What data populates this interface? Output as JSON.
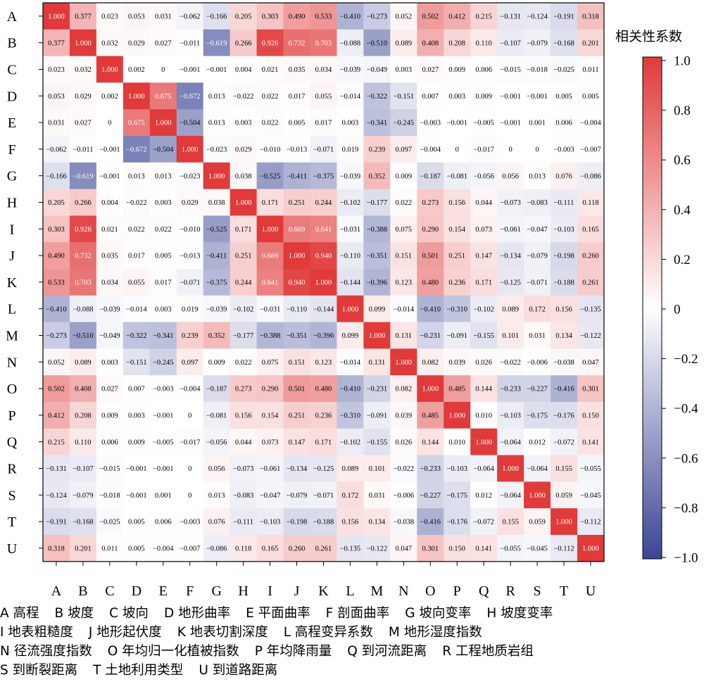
{
  "chart_data": {
    "type": "heatmap",
    "title": "",
    "colorbar_title": "相关性系数",
    "colorbar_ticks": [
      "1.0",
      "0.8",
      "0.6",
      "0.4",
      "0.2",
      "0",
      "−0.2",
      "−0.4",
      "−0.6",
      "−0.8",
      "−1.0"
    ],
    "zlim": [
      -1.0,
      1.0
    ],
    "colors": {
      "positive": "#e03a3a",
      "zero": "#ffffff",
      "negative": "#3b4596"
    },
    "row_labels": [
      "A",
      "B",
      "C",
      "D",
      "E",
      "F",
      "G",
      "H",
      "I",
      "J",
      "K",
      "L",
      "M",
      "N",
      "O",
      "P",
      "Q",
      "R",
      "S",
      "T",
      "U"
    ],
    "col_labels": [
      "A",
      "B",
      "C",
      "D",
      "E",
      "F",
      "G",
      "H",
      "I",
      "J",
      "K",
      "L",
      "M",
      "N",
      "O",
      "P",
      "Q",
      "R",
      "S",
      "T",
      "U"
    ],
    "cell_labels": [
      [
        "1.000",
        "0.377",
        "0.023",
        "0.053",
        "0.031",
        "−0.062",
        "−0.166",
        "0.205",
        "0.303",
        "0.490",
        "0.533",
        "−0.410",
        "−0.273",
        "0.052",
        "0.502",
        "0.412",
        "0.215",
        "−0.131",
        "−0.124",
        "−0.191",
        "0.318"
      ],
      [
        "0.377",
        "1.000",
        "0.032",
        "0.029",
        "0.027",
        "−0.011",
        "−0.619",
        "0.266",
        "0.926",
        "0.732",
        "0.703",
        "−0.088",
        "−0.510",
        "0.089",
        "0.408",
        "0.208",
        "0.110",
        "−0.107",
        "−0.079",
        "−0.168",
        "0.201"
      ],
      [
        "0.023",
        "0.032",
        "1.000",
        "0.002",
        "0",
        "−0.001",
        "−0.001",
        "0.004",
        "0.021",
        "0.035",
        "0.034",
        "−0.039",
        "−0.049",
        "0.003",
        "0.027",
        "0.009",
        "0.006",
        "−0.015",
        "−0.018",
        "−0.025",
        "0.011"
      ],
      [
        "0.053",
        "0.029",
        "0.002",
        "1.000",
        "0.675",
        "−0.672",
        "0.013",
        "−0.022",
        "0.022",
        "0.017",
        "0.055",
        "−0.014",
        "−0.322",
        "−0.151",
        "0.007",
        "0.003",
        "0.009",
        "−0.001",
        "−0.001",
        "0.005",
        "0.005"
      ],
      [
        "0.031",
        "0.027",
        "0",
        "0.675",
        "1.000",
        "−0.504",
        "0.013",
        "0.003",
        "0.022",
        "0.005",
        "0.017",
        "0.003",
        "−0.341",
        "−0.245",
        "−0.003",
        "−0.001",
        "−0.005",
        "−0.001",
        "0.001",
        "0.006",
        "−0.004"
      ],
      [
        "−0.062",
        "−0.011",
        "−0.001",
        "−0.672",
        "−0.504",
        "1.000",
        "−0.023",
        "0.029",
        "−0.010",
        "−0.013",
        "−0.071",
        "0.019",
        "0.239",
        "0.097",
        "−0.004",
        "0",
        "−0.017",
        "0",
        "0",
        "−0.003",
        "−0.007"
      ],
      [
        "−0.166",
        "−0.619",
        "−0.001",
        "0.013",
        "0.013",
        "−0.023",
        "1.000",
        "0.038",
        "−0.525",
        "−0.411",
        "−0.375",
        "−0.039",
        "0.352",
        "0.009",
        "−0.187",
        "−0.081",
        "−0.056",
        "0.056",
        "0.013",
        "0.076",
        "−0.086"
      ],
      [
        "0.205",
        "0.266",
        "0.004",
        "−0.022",
        "0.003",
        "0.029",
        "0.038",
        "1.000",
        "0.171",
        "0.251",
        "0.244",
        "−0.102",
        "−0.177",
        "0.022",
        "0.273",
        "0.156",
        "0.044",
        "−0.073",
        "−0.083",
        "−0.111",
        "0.118"
      ],
      [
        "0.303",
        "0.926",
        "0.021",
        "0.022",
        "0.022",
        "−0.010",
        "−0.525",
        "0.171",
        "1.000",
        "0.669",
        "0.641",
        "−0.031",
        "−0.388",
        "0.075",
        "0.290",
        "0.154",
        "0.073",
        "−0.061",
        "−0.047",
        "−0.103",
        "0.165"
      ],
      [
        "0.490",
        "0.732",
        "0.035",
        "0.017",
        "0.005",
        "−0.013",
        "−0.411",
        "0.251",
        "0.669",
        "1.000",
        "0.940",
        "−0.110",
        "−0.351",
        "0.151",
        "0.501",
        "0.251",
        "0.147",
        "−0.134",
        "−0.079",
        "−0.198",
        "0.260"
      ],
      [
        "0.533",
        "0.703",
        "0.034",
        "0.055",
        "0.017",
        "−0.071",
        "−0.375",
        "0.244",
        "0.641",
        "0.940",
        "1.000",
        "−0.144",
        "−0.396",
        "0.123",
        "0.480",
        "0.236",
        "0.171",
        "−0.125",
        "−0.071",
        "−0.188",
        "0.261"
      ],
      [
        "−0.410",
        "−0.088",
        "−0.039",
        "−0.014",
        "0.003",
        "0.019",
        "−0.039",
        "−0.102",
        "−0.031",
        "−0.110",
        "−0.144",
        "1.000",
        "0.099",
        "−0.014",
        "−0.410",
        "−0.310",
        "−0.102",
        "0.089",
        "0.172",
        "0.156",
        "−0.135"
      ],
      [
        "−0.273",
        "−0.510",
        "−0.049",
        "−0.322",
        "−0.341",
        "0.239",
        "0.352",
        "−0.177",
        "−0.388",
        "−0.351",
        "−0.396",
        "0.099",
        "1.000",
        "0.131",
        "−0.231",
        "−0.091",
        "−0.155",
        "0.101",
        "0.031",
        "0.134",
        "−0.122"
      ],
      [
        "0.052",
        "0.089",
        "0.003",
        "−0.151",
        "−0.245",
        "0.097",
        "0.009",
        "0.022",
        "0.075",
        "0.151",
        "0.123",
        "−0.014",
        "0.131",
        "1.000",
        "0.082",
        "0.039",
        "0.026",
        "−0.022",
        "−0.006",
        "−0.038",
        "0.047"
      ],
      [
        "0.502",
        "0.408",
        "0.027",
        "0.007",
        "−0.003",
        "−0.004",
        "−0.187",
        "0.273",
        "0.290",
        "0.501",
        "0.480",
        "−0.410",
        "−0.231",
        "0.082",
        "1.000",
        "0.485",
        "0.144",
        "−0.233",
        "−0.227",
        "−0.416",
        "0.301"
      ],
      [
        "0.412",
        "0.208",
        "0.009",
        "0.003",
        "−0.001",
        "0",
        "−0.081",
        "0.156",
        "0.154",
        "0.251",
        "0.236",
        "−0.310",
        "−0.091",
        "0.039",
        "0.485",
        "1.000",
        "0.010",
        "−0.103",
        "−0.175",
        "−0.176",
        "0.150"
      ],
      [
        "0.215",
        "0.110",
        "0.006",
        "0.009",
        "−0.005",
        "−0.017",
        "−0.056",
        "0.044",
        "0.073",
        "0.147",
        "0.171",
        "−0.102",
        "−0.155",
        "0.026",
        "0.144",
        "0.010",
        "1.000",
        "−0.064",
        "0.012",
        "−0.072",
        "0.141"
      ],
      [
        "−0.131",
        "−0.107",
        "−0.015",
        "−0.001",
        "−0.001",
        "0",
        "0.056",
        "−0.073",
        "−0.061",
        "−0.134",
        "−0.125",
        "0.089",
        "0.101",
        "−0.022",
        "−0.233",
        "−0.103",
        "−0.064",
        "1.000",
        "−0.064",
        "0.155",
        "−0.055"
      ],
      [
        "−0.124",
        "−0.079",
        "−0.018",
        "−0.001",
        "0.001",
        "0",
        "0.013",
        "−0.083",
        "−0.047",
        "−0.079",
        "−0.071",
        "0.172",
        "0.031",
        "−0.006",
        "−0.227",
        "−0.175",
        "0.012",
        "−0.064",
        "1.000",
        "0.059",
        "−0.045"
      ],
      [
        "−0.191",
        "−0.168",
        "−0.025",
        "0.005",
        "0.006",
        "−0.003",
        "0.076",
        "−0.111",
        "−0.103",
        "−0.198",
        "−0.188",
        "0.156",
        "0.134",
        "−0.038",
        "−0.416",
        "−0.176",
        "−0.072",
        "0.155",
        "0.059",
        "1.000",
        "−0.112"
      ],
      [
        "0.318",
        "0.201",
        "0.011",
        "0.005",
        "−0.004",
        "−0.007",
        "−0.086",
        "0.118",
        "0.165",
        "0.260",
        "0.261",
        "−0.135",
        "−0.122",
        "0.047",
        "0.301",
        "0.150",
        "0.141",
        "−0.055",
        "−0.045",
        "−0.112",
        "1.000"
      ]
    ]
  },
  "legend": {
    "lines": [
      [
        "A 高程",
        "B 坡度",
        "C 坡向",
        "D 地形曲率",
        "E 平面曲率",
        "F 剖面曲率",
        "G 坡向变率",
        "H 坡度变率"
      ],
      [
        "I 地表粗糙度",
        "J 地形起伏度",
        "K 地表切割深度",
        "L 高程变异系数",
        "M 地形湿度指数"
      ],
      [
        "N 径流强度指数",
        "O 年均归一化植被指数",
        "P 年均降雨量",
        "Q 到河流距离",
        "R 工程地质岩组"
      ],
      [
        "S 到断裂距离",
        "T 土地利用类型",
        "U 到道路距离"
      ]
    ]
  }
}
